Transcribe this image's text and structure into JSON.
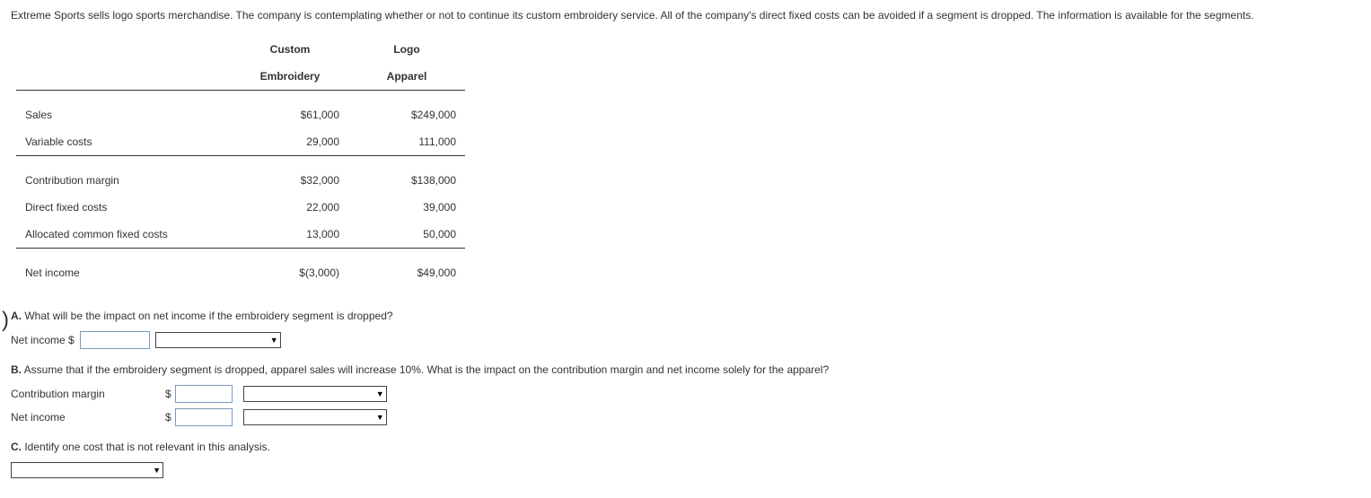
{
  "intro": "Extreme Sports sells logo sports merchandise. The company is contemplating whether or not to continue its custom embroidery service. All of the company's direct fixed costs can be avoided if a segment is dropped. The information is available for the segments.",
  "table": {
    "headers": {
      "col1_line1": "Custom",
      "col1_line2": "Embroidery",
      "col2_line1": "Logo",
      "col2_line2": "Apparel"
    },
    "rows": [
      {
        "label": "Sales",
        "c1": "$61,000",
        "c2": "$249,000",
        "rule_above": true
      },
      {
        "label": "Variable costs",
        "c1": "29,000",
        "c2": "111,000"
      },
      {
        "label": "Contribution margin",
        "c1": "$32,000",
        "c2": "$138,000",
        "rule_above": true
      },
      {
        "label": "Direct fixed costs",
        "c1": "22,000",
        "c2": "39,000"
      },
      {
        "label": "Allocated common fixed costs",
        "c1": "13,000",
        "c2": "50,000"
      },
      {
        "label": "Net income",
        "c1": "$(3,000)",
        "c2": "$49,000",
        "rule_above": true
      }
    ]
  },
  "partA": {
    "prefix": "A.",
    "question": "What will be the impact on net income if the embroidery segment is dropped?",
    "answer_label": "Net income $"
  },
  "partB": {
    "prefix": "B.",
    "question": "Assume that if the embroidery segment is dropped, apparel sales will increase 10%. What is the impact on the contribution margin and net income solely for the apparel?",
    "row1_label": "Contribution margin",
    "row2_label": "Net income",
    "dollar": "$"
  },
  "partC": {
    "prefix": "C.",
    "question": "Identify one cost that is not relevant in this analysis."
  }
}
